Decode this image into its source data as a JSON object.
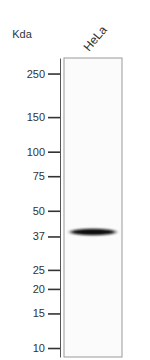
{
  "chart_data": {
    "type": "western_blot",
    "y_label": "Kda",
    "categories": [
      "HeLa"
    ],
    "values": [
      39
    ],
    "color": "#111111",
    "log": "y",
    "ylim": [
      9,
      300
    ],
    "yticks": [
      250,
      150,
      100,
      75,
      50,
      37,
      25,
      20,
      15,
      10
    ]
  }
}
